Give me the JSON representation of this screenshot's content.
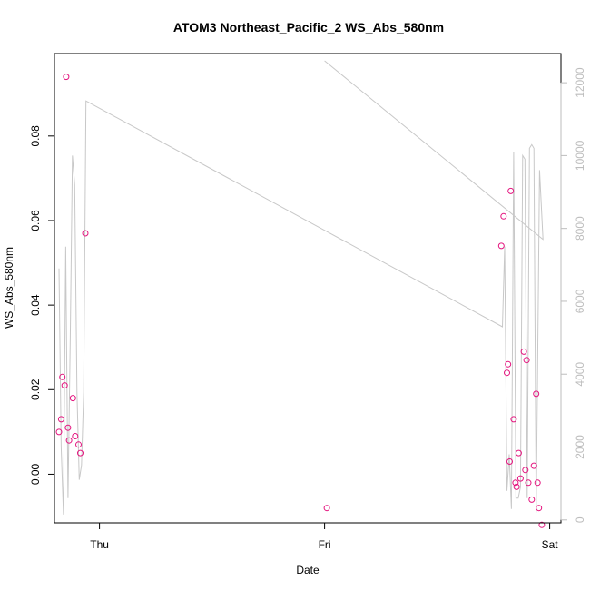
{
  "chart_data": {
    "type": "scatter",
    "title": "ATOM3 Northeast_Pacific_2 WS_Abs_580nm",
    "xlabel": "Date",
    "ylabel": "WS_Abs_580nm",
    "x_ticks": [
      "Thu",
      "Fri",
      "Sat"
    ],
    "y_ticks": [
      "0.00",
      "0.02",
      "0.04",
      "0.06",
      "0.08"
    ],
    "y_right_ticks": [
      "0",
      "2000",
      "4000",
      "6000",
      "8000",
      "10000",
      "12000"
    ],
    "xlim_days": [
      -0.2,
      2.05
    ],
    "ylim": [
      -0.0115,
      0.0995
    ],
    "y_right_lim": [
      -80,
      12800
    ],
    "grid": false,
    "colors": {
      "points": "#e4147e",
      "secondary_line": "#c8c8c8",
      "secondary_axis": "#bdbdbd"
    },
    "series": [
      {
        "values": [
          {
            "x": -0.18,
            "y": 0.01
          },
          {
            "x": -0.17,
            "y": 0.013
          },
          {
            "x": -0.165,
            "y": 0.023
          },
          {
            "x": -0.155,
            "y": 0.021
          },
          {
            "x": -0.148,
            "y": 0.094
          },
          {
            "x": -0.14,
            "y": 0.011
          },
          {
            "x": -0.135,
            "y": 0.008
          },
          {
            "x": -0.118,
            "y": 0.018
          },
          {
            "x": -0.108,
            "y": 0.009
          },
          {
            "x": -0.093,
            "y": 0.007
          },
          {
            "x": -0.085,
            "y": 0.005
          },
          {
            "x": -0.063,
            "y": 0.057
          },
          {
            "x": 1.01,
            "y": -0.008
          },
          {
            "x": 1.785,
            "y": 0.054
          },
          {
            "x": 1.795,
            "y": 0.061
          },
          {
            "x": 1.81,
            "y": 0.024
          },
          {
            "x": 1.815,
            "y": 0.026
          },
          {
            "x": 1.822,
            "y": 0.003
          },
          {
            "x": 1.827,
            "y": 0.067
          },
          {
            "x": 1.84,
            "y": 0.013
          },
          {
            "x": 1.848,
            "y": -0.002
          },
          {
            "x": 1.853,
            "y": -0.003
          },
          {
            "x": 1.862,
            "y": 0.005
          },
          {
            "x": 1.87,
            "y": -0.001
          },
          {
            "x": 1.885,
            "y": 0.029
          },
          {
            "x": 1.892,
            "y": 0.001
          },
          {
            "x": 1.897,
            "y": 0.027
          },
          {
            "x": 1.905,
            "y": -0.002
          },
          {
            "x": 1.92,
            "y": -0.006
          },
          {
            "x": 1.93,
            "y": 0.002
          },
          {
            "x": 1.94,
            "y": 0.019
          },
          {
            "x": 1.946,
            "y": -0.002
          },
          {
            "x": 1.952,
            "y": -0.008
          },
          {
            "x": 1.965,
            "y": -0.012
          }
        ]
      },
      {
        "axis": "right",
        "values": [
          {
            "x": -0.18,
            "y": 6900
          },
          {
            "x": -0.17,
            "y": 2000
          },
          {
            "x": -0.16,
            "y": 150
          },
          {
            "x": -0.15,
            "y": 7500
          },
          {
            "x": -0.14,
            "y": 600
          },
          {
            "x": -0.13,
            "y": 5000
          },
          {
            "x": -0.12,
            "y": 10000
          },
          {
            "x": -0.11,
            "y": 9200
          },
          {
            "x": -0.1,
            "y": 3500
          },
          {
            "x": -0.09,
            "y": 1100
          },
          {
            "x": -0.08,
            "y": 1500
          },
          {
            "x": -0.07,
            "y": 3500
          },
          {
            "x": -0.06,
            "y": 11500
          },
          {
            "x": 1.79,
            "y": 5300
          },
          {
            "x": 1.8,
            "y": 7500
          },
          {
            "x": 1.81,
            "y": 800
          },
          {
            "x": 1.82,
            "y": 1800
          },
          {
            "x": 1.83,
            "y": 300
          },
          {
            "x": 1.84,
            "y": 10100
          },
          {
            "x": 1.85,
            "y": 600
          },
          {
            "x": 1.86,
            "y": 600
          },
          {
            "x": 1.87,
            "y": 900
          },
          {
            "x": 1.88,
            "y": 10000
          },
          {
            "x": 1.89,
            "y": 9900
          },
          {
            "x": 1.9,
            "y": 600
          },
          {
            "x": 1.91,
            "y": 10200
          },
          {
            "x": 1.92,
            "y": 10300
          },
          {
            "x": 1.93,
            "y": 10200
          },
          {
            "x": 1.94,
            "y": 200
          },
          {
            "x": 1.955,
            "y": 9600
          },
          {
            "x": 1.97,
            "y": 7700
          },
          {
            "x": 1.0,
            "y": 12600
          },
          {
            "x": 1.97,
            "y": 7700
          }
        ]
      }
    ]
  }
}
